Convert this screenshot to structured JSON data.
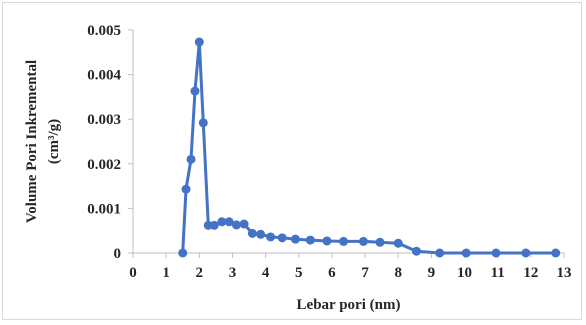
{
  "chart_data": {
    "type": "line",
    "title": "",
    "xlabel": "Lebar pori (nm)",
    "ylabel": [
      "Volume Pori Inkremental",
      "(cm³/g)"
    ],
    "xlim": [
      0,
      13
    ],
    "ylim": [
      0,
      0.005
    ],
    "x_ticks": [
      "0",
      "1",
      "2",
      "3",
      "4",
      "5",
      "6",
      "7",
      "8",
      "9",
      "10",
      "11",
      "12",
      "13"
    ],
    "y_ticks": [
      "0",
      "0.001",
      "0.002",
      "0.003",
      "0.004",
      "0.005"
    ],
    "grid": false,
    "legend": false,
    "color": "#4472c4",
    "markers": true,
    "series": [
      {
        "x": [
          1.5,
          1.6,
          1.75,
          1.87,
          2.0,
          2.12,
          2.27,
          2.45,
          2.68,
          2.9,
          3.12,
          3.35,
          3.6,
          3.85,
          4.15,
          4.5,
          4.9,
          5.35,
          5.85,
          6.35,
          6.95,
          7.45,
          8.0,
          8.55,
          9.25,
          10.05,
          10.95,
          11.85,
          12.75
        ],
        "y": [
          0.0,
          0.00143,
          0.0021,
          0.00363,
          0.00473,
          0.00292,
          0.00062,
          0.00062,
          0.0007,
          0.0007,
          0.00063,
          0.00065,
          0.00044,
          0.00042,
          0.00036,
          0.00034,
          0.00031,
          0.00029,
          0.00027,
          0.00026,
          0.00026,
          0.00024,
          0.00022,
          4e-05,
          0.0,
          0.0,
          0.0,
          0.0,
          0.0
        ]
      }
    ]
  }
}
